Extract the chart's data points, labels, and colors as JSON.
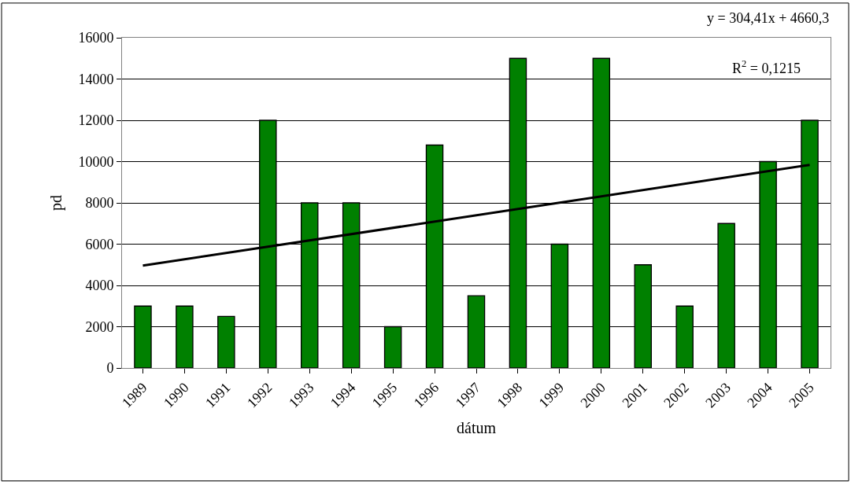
{
  "chart_data": {
    "type": "bar",
    "xlabel": "dátum",
    "ylabel": "pd",
    "categories": [
      "1989",
      "1990",
      "1991",
      "1992",
      "1993",
      "1994",
      "1995",
      "1996",
      "1997",
      "1998",
      "1999",
      "2000",
      "2001",
      "2002",
      "2003",
      "2004",
      "2005"
    ],
    "series": [
      {
        "color": "#008000",
        "values": [
          3000,
          3000,
          2500,
          12000,
          8000,
          8000,
          2000,
          10800,
          3500,
          15000,
          6000,
          15000,
          5000,
          3000,
          7000,
          10000,
          12000
        ]
      },
      {
        "type": "line",
        "color": "#000000",
        "values": [
          4960,
          null,
          null,
          null,
          null,
          null,
          null,
          null,
          null,
          null,
          null,
          null,
          null,
          null,
          null,
          null,
          9840
        ]
      }
    ],
    "ylim": [
      0,
      16000
    ],
    "yticks": [
      0,
      2000,
      4000,
      6000,
      8000,
      10000,
      12000,
      14000,
      16000
    ],
    "grid": "y",
    "annotations": [
      "y = 304,41x + 4660,3",
      "R$^{2}$ = 0,1215"
    ]
  }
}
